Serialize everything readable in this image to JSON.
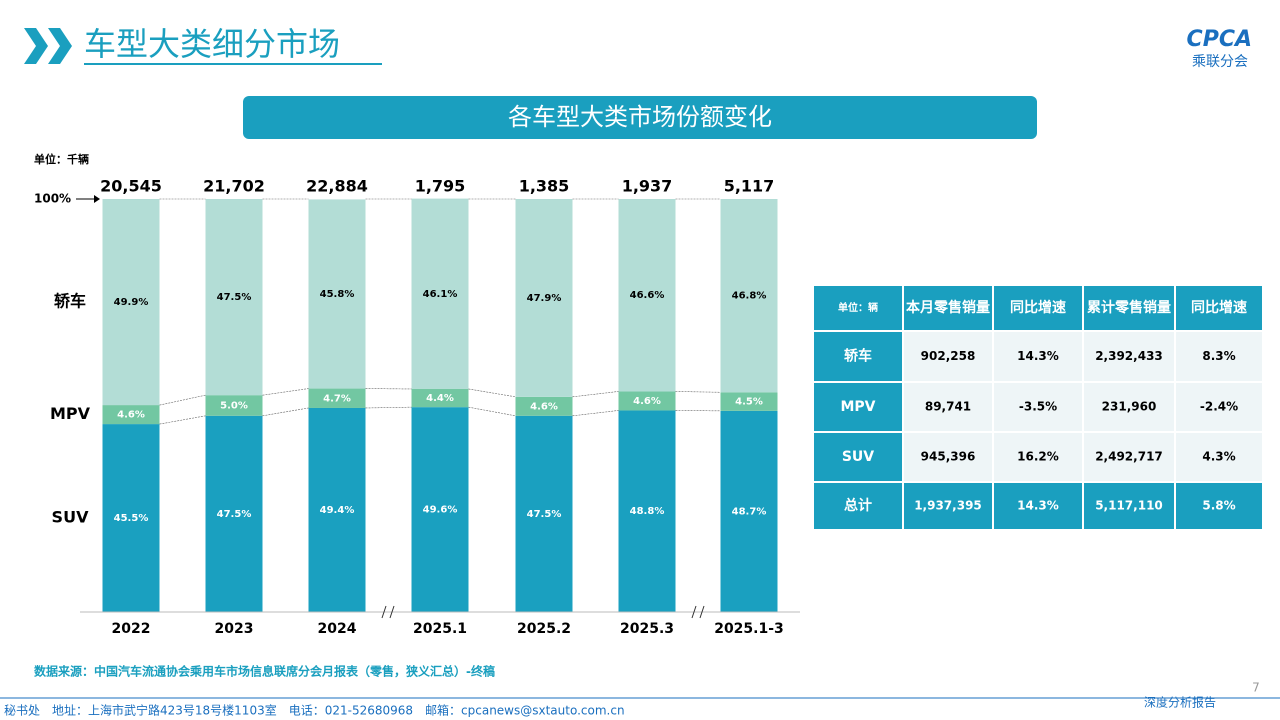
{
  "header": {
    "title": "车型大类细分市场",
    "logo": "CPCA",
    "logo_sub": "乘联分会"
  },
  "chart_data": {
    "type": "stacked-bar",
    "title": "各车型大类市场份额变化",
    "unit": "单位：千辆",
    "top_label": "100%",
    "categories": [
      "2022",
      "2023",
      "2024",
      "2025.1",
      "2025.2",
      "2025.3",
      "2025.1-3"
    ],
    "ylim": [
      0,
      100
    ],
    "series": [
      {
        "name": "SUV",
        "color": "#1aa0c0",
        "values": [
          45.5,
          47.5,
          49.4,
          49.6,
          47.5,
          48.8,
          48.7
        ],
        "value_labels": [
          "45.5%",
          "47.5%",
          "49.4%",
          "49.6%",
          "47.5%",
          "48.8%",
          "48.7%"
        ]
      },
      {
        "name": "MPV",
        "color": "#72c7a2",
        "values": [
          4.6,
          5.0,
          4.7,
          4.4,
          4.6,
          4.6,
          4.5
        ],
        "value_labels": [
          "4.6%",
          "5.0%",
          "4.7%",
          "4.4%",
          "4.6%",
          "4.6%",
          "4.5%"
        ]
      },
      {
        "name": "轿车",
        "color": "#b3ddd6",
        "values": [
          49.9,
          47.5,
          45.8,
          46.1,
          47.9,
          46.6,
          46.8
        ],
        "value_labels": [
          "49.9%",
          "47.5%",
          "45.8%",
          "46.1%",
          "47.9%",
          "46.6%",
          "46.8%"
        ]
      }
    ],
    "totals": {
      "values": [
        20545,
        21702,
        22884,
        1795,
        1385,
        1937,
        5117
      ],
      "value_labels": [
        "20,545",
        "21,702",
        "22,884",
        "1,795",
        "1,385",
        "1,937",
        "5,117"
      ]
    }
  },
  "table": {
    "header": [
      "单位：辆",
      "本月零售销量",
      "同比增速",
      "累计零售销量",
      "同比增速"
    ],
    "rows": [
      [
        "轿车",
        "902,258",
        "14.3%",
        "2,392,433",
        "8.3%"
      ],
      [
        "MPV",
        "89,741",
        "-3.5%",
        "231,960",
        "-2.4%"
      ],
      [
        "SUV",
        "945,396",
        "16.2%",
        "2,492,717",
        "4.3%"
      ],
      [
        "总计",
        "1,937,395",
        "14.3%",
        "5,117,110",
        "5.8%"
      ]
    ]
  },
  "source": "数据来源：中国汽车流通协会乘用车市场信息联席分会月报表（零售，狭义汇总）-终稿",
  "footer": {
    "address": "秘书处　地址：上海市武宁路423号18号楼1103室　电话：021-52680968　邮箱：cpcanews@sxtauto.com.cn",
    "report": "深度分析报告",
    "page": "7"
  }
}
